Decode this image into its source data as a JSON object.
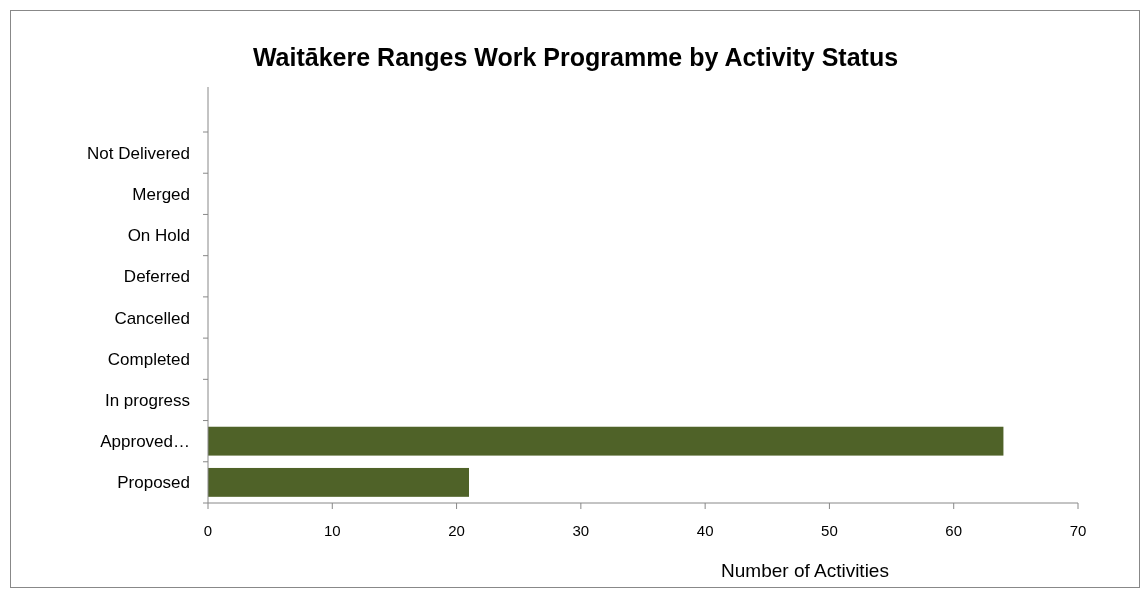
{
  "chart_data": {
    "type": "bar",
    "title": "Waitākere Ranges Work Programme by Activity Status",
    "xlabel": "Number of Activities",
    "orientation": "horizontal",
    "categories": [
      "Not Delivered",
      "Merged",
      "On Hold",
      "Deferred",
      "Cancelled",
      "Completed",
      "In progress",
      "Approved…",
      "Proposed"
    ],
    "values": [
      0,
      0,
      0,
      0,
      0,
      0,
      0,
      64,
      21
    ],
    "color": "#4f6228",
    "xlim": [
      0,
      70
    ],
    "xticks": [
      0,
      10,
      20,
      30,
      40,
      50,
      60,
      70
    ],
    "grid": false
  }
}
